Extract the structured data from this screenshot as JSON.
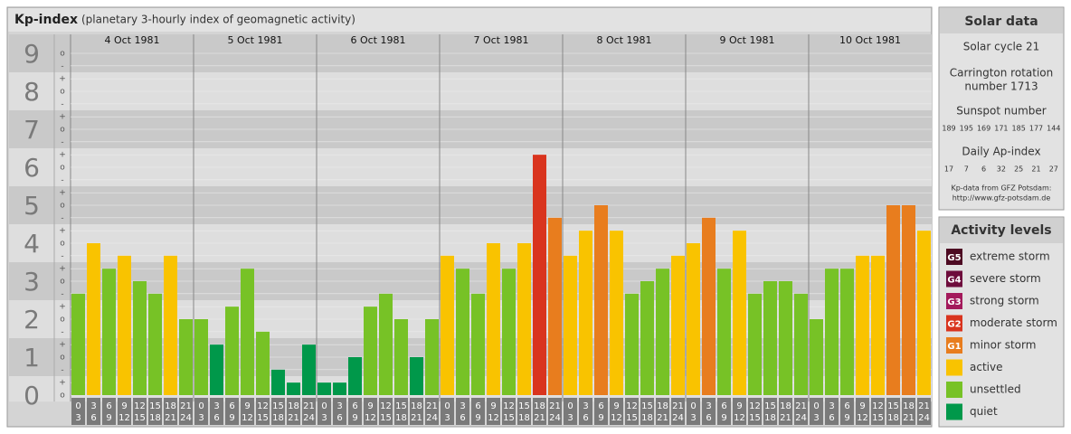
{
  "chart_data": {
    "type": "bar",
    "title": "Kp-index",
    "subtitle": "(planetary 3-hourly index of geomagnetic activity)",
    "ylim": [
      -0.17,
      9.5
    ],
    "yticks": [
      0,
      1,
      2,
      3,
      4,
      5,
      6,
      7,
      8,
      9
    ],
    "minor_ticks": [
      {
        "value": 0,
        "label": "o"
      },
      {
        "value": 0.33,
        "label": "+"
      },
      {
        "value": 0.67,
        "label": "-"
      },
      {
        "value": 1,
        "label": "o"
      },
      {
        "value": 1.33,
        "label": "+"
      },
      {
        "value": 1.67,
        "label": "-"
      },
      {
        "value": 2,
        "label": "o"
      },
      {
        "value": 2.33,
        "label": "+"
      },
      {
        "value": 2.67,
        "label": "-"
      },
      {
        "value": 3,
        "label": "o"
      },
      {
        "value": 3.33,
        "label": "+"
      },
      {
        "value": 3.67,
        "label": "-"
      },
      {
        "value": 4,
        "label": "o"
      },
      {
        "value": 4.33,
        "label": "+"
      },
      {
        "value": 4.67,
        "label": "-"
      },
      {
        "value": 5,
        "label": "o"
      },
      {
        "value": 5.33,
        "label": "+"
      },
      {
        "value": 5.67,
        "label": "-"
      },
      {
        "value": 6,
        "label": "o"
      },
      {
        "value": 6.33,
        "label": "+"
      },
      {
        "value": 6.67,
        "label": "-"
      },
      {
        "value": 7,
        "label": "o"
      },
      {
        "value": 7.33,
        "label": "+"
      },
      {
        "value": 7.67,
        "label": "-"
      },
      {
        "value": 8,
        "label": "o"
      },
      {
        "value": 8.33,
        "label": "+"
      },
      {
        "value": 8.67,
        "label": "-"
      },
      {
        "value": 9,
        "label": "o"
      }
    ],
    "grid": true,
    "hour_ranges": [
      [
        "0",
        "3"
      ],
      [
        "3",
        "6"
      ],
      [
        "6",
        "9"
      ],
      [
        "9",
        "12"
      ],
      [
        "12",
        "15"
      ],
      [
        "15",
        "18"
      ],
      [
        "18",
        "21"
      ],
      [
        "21",
        "24"
      ]
    ],
    "days": [
      {
        "label": "4 Oct 1981",
        "values": [
          2.67,
          4,
          3.33,
          3.67,
          3,
          2.67,
          3.67,
          2
        ],
        "colors": [
          "#77c226",
          "#f9c300",
          "#77c226",
          "#f9c300",
          "#77c226",
          "#77c226",
          "#f9c300",
          "#77c226"
        ]
      },
      {
        "label": "5 Oct 1981",
        "values": [
          2,
          1.33,
          2.33,
          3.33,
          1.67,
          0.67,
          0.33,
          1.33
        ],
        "colors": [
          "#77c226",
          "#00984a",
          "#77c226",
          "#77c226",
          "#77c226",
          "#00984a",
          "#00984a",
          "#00984a"
        ]
      },
      {
        "label": "6 Oct 1981",
        "values": [
          0.33,
          0.33,
          1,
          2.33,
          2.67,
          2,
          1,
          2
        ],
        "colors": [
          "#00984a",
          "#00984a",
          "#00984a",
          "#77c226",
          "#77c226",
          "#77c226",
          "#00984a",
          "#77c226"
        ]
      },
      {
        "label": "7 Oct 1981",
        "values": [
          3.67,
          3.33,
          2.67,
          4,
          3.33,
          4,
          6.33,
          4.67
        ],
        "colors": [
          "#f9c300",
          "#77c226",
          "#77c226",
          "#f9c300",
          "#77c226",
          "#f9c300",
          "#d9341e",
          "#e87d1e"
        ]
      },
      {
        "label": "8 Oct 1981",
        "values": [
          3.67,
          4.33,
          5,
          4.33,
          2.67,
          3,
          3.33,
          3.67
        ],
        "colors": [
          "#f9c300",
          "#f9c300",
          "#e87d1e",
          "#f9c300",
          "#77c226",
          "#77c226",
          "#77c226",
          "#f9c300"
        ]
      },
      {
        "label": "9 Oct 1981",
        "values": [
          4,
          4.67,
          3.33,
          4.33,
          2.67,
          3,
          3,
          2.67
        ],
        "colors": [
          "#f9c300",
          "#e87d1e",
          "#77c226",
          "#f9c300",
          "#77c226",
          "#77c226",
          "#77c226",
          "#77c226"
        ]
      },
      {
        "label": "10 Oct 1981",
        "values": [
          2,
          3.33,
          3.33,
          3.67,
          3.67,
          5,
          5,
          4.33
        ],
        "colors": [
          "#77c226",
          "#77c226",
          "#77c226",
          "#f9c300",
          "#f9c300",
          "#e87d1e",
          "#e87d1e",
          "#f9c300"
        ]
      }
    ]
  },
  "solar_data": {
    "title": "Solar data",
    "cycle": "Solar cycle 21",
    "carrington": [
      "Carrington rotation",
      "number 1713"
    ],
    "sunspot_label": "Sunspot number",
    "sunspots": [
      189,
      195,
      169,
      171,
      185,
      177,
      144
    ],
    "ap_label": "Daily Ap-index",
    "ap": [
      17,
      7,
      6,
      32,
      25,
      21,
      27
    ],
    "source": [
      "Kp-data from GFZ Potsdam:",
      "http://www.gfz-potsdam.de"
    ]
  },
  "legend": {
    "title": "Activity levels",
    "items": [
      {
        "code": "G5",
        "label": "extreme storm",
        "color": "#4d0a22"
      },
      {
        "code": "G4",
        "label": "severe storm",
        "color": "#6e0c3c"
      },
      {
        "code": "G3",
        "label": "strong storm",
        "color": "#a3195b"
      },
      {
        "code": "G2",
        "label": "moderate storm",
        "color": "#d9341e"
      },
      {
        "code": "G1",
        "label": "minor storm",
        "color": "#e87d1e"
      },
      {
        "label": "active",
        "color": "#f9c300"
      },
      {
        "label": "unsettled",
        "color": "#77c226"
      },
      {
        "label": "quiet",
        "color": "#00984a"
      }
    ]
  }
}
